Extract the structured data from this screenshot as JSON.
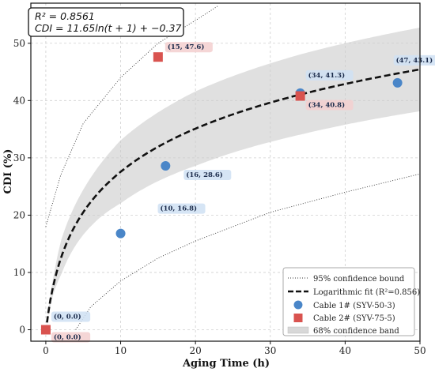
{
  "chart_data": {
    "type": "scatter",
    "xlabel": "Aging Time (h)",
    "ylabel": "CDI (%)",
    "xlim": [
      -2,
      50
    ],
    "ylim": [
      -2,
      57
    ],
    "x_ticks": [
      0,
      10,
      20,
      30,
      40,
      50
    ],
    "y_ticks": [
      0,
      10,
      20,
      30,
      40,
      50
    ],
    "grid": true,
    "legend_position": "bottom-right",
    "stats_box": {
      "r2_line": "R² = 0.8561",
      "equation_line": "CDI = 11.65ln(t + 1) + −0.37"
    },
    "fit": {
      "label": "Logarithmic fit (R²=0.856)",
      "a": 11.65,
      "b": -0.37,
      "color": "#111111"
    },
    "confidence_band": {
      "label": "68% confidence band",
      "half_width_at_t": [
        [
          0,
          0
        ],
        [
          2,
          3.0
        ],
        [
          10,
          5.5
        ],
        [
          20,
          6.5
        ],
        [
          34,
          7.0
        ],
        [
          50,
          7.3
        ]
      ],
      "color": "#cccccc"
    },
    "confidence_bound": {
      "label": "95% confidence bound",
      "upper": [
        [
          0,
          18.0
        ],
        [
          2,
          27
        ],
        [
          5,
          36
        ],
        [
          10,
          44
        ],
        [
          15,
          50
        ],
        [
          20,
          54
        ],
        [
          23,
          56.5
        ]
      ],
      "lower": [
        [
          4,
          0.0
        ],
        [
          6,
          4.0
        ],
        [
          10,
          8.5
        ],
        [
          15,
          12.5
        ],
        [
          20,
          15.5
        ],
        [
          30,
          20.5
        ],
        [
          40,
          24.0
        ],
        [
          50,
          27.2
        ]
      ],
      "color": "#333333"
    },
    "series": [
      {
        "name": "Cable 1# (SYV-50-3)",
        "marker": "circle",
        "color": "#4a86c8",
        "points": [
          {
            "x": 0,
            "y": 0.0,
            "label": "(0, 0.0)"
          },
          {
            "x": 10,
            "y": 16.8,
            "label": "(10, 16.8)"
          },
          {
            "x": 16,
            "y": 28.6,
            "label": "(16, 28.6)"
          },
          {
            "x": 34,
            "y": 41.3,
            "label": "(34, 41.3)"
          },
          {
            "x": 47,
            "y": 43.1,
            "label": "(47, 43.1)"
          }
        ]
      },
      {
        "name": "Cable 2# (SYV-75-5)",
        "marker": "square",
        "color": "#d9534f",
        "points": [
          {
            "x": 0,
            "y": 0.0,
            "label": "(0, 0.0)"
          },
          {
            "x": 15,
            "y": 47.6,
            "label": "(15, 47.6)"
          },
          {
            "x": 34,
            "y": 40.8,
            "label": "(34, 40.8)"
          }
        ]
      }
    ]
  }
}
